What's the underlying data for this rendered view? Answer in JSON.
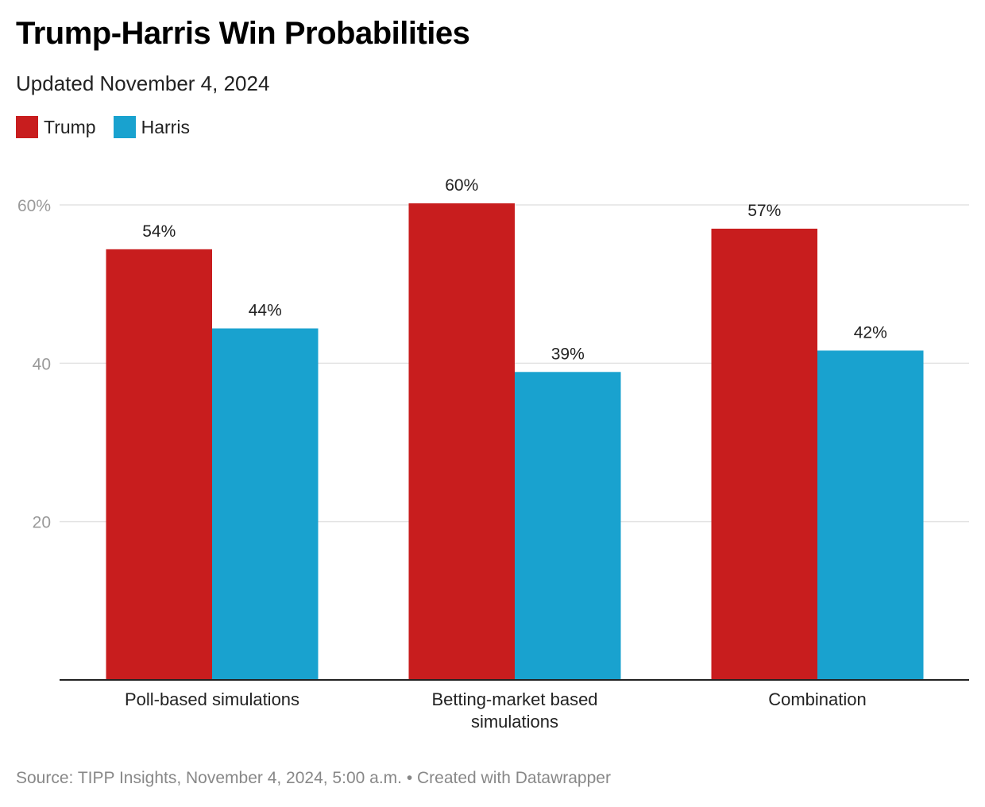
{
  "title": "Trump-Harris Win Probabilities",
  "subtitle": "Updated November 4, 2024",
  "source": "Source: TIPP Insights, November 4, 2024, 5:00 a.m. • Created with Datawrapper",
  "colors": {
    "trump": "#c81d1e",
    "harris": "#19a2cf",
    "grid": "#e3e3e3",
    "axis": "#222222"
  },
  "chart_data": {
    "type": "bar",
    "title": "Trump-Harris Win Probabilities",
    "subtitle": "Updated November 4, 2024",
    "categories": [
      "Poll-based simulations",
      "Betting-market based simulations",
      "Combination"
    ],
    "category_lines": [
      [
        "Poll-based simulations"
      ],
      [
        "Betting-market based",
        "simulations"
      ],
      [
        "Combination"
      ]
    ],
    "series": [
      {
        "name": "Trump",
        "values": [
          54.4,
          60.2,
          57.0
        ],
        "labels": [
          "54%",
          "60%",
          "57%"
        ]
      },
      {
        "name": "Harris",
        "values": [
          44.4,
          38.9,
          41.6
        ],
        "labels": [
          "44%",
          "39%",
          "42%"
        ]
      }
    ],
    "y_ticks": [
      20,
      40,
      60
    ],
    "y_tick_labels": [
      "20",
      "40",
      "60%"
    ],
    "ylim": [
      0,
      60
    ],
    "xlabel": "",
    "ylabel": "",
    "grid": true,
    "legend": "top-left"
  }
}
